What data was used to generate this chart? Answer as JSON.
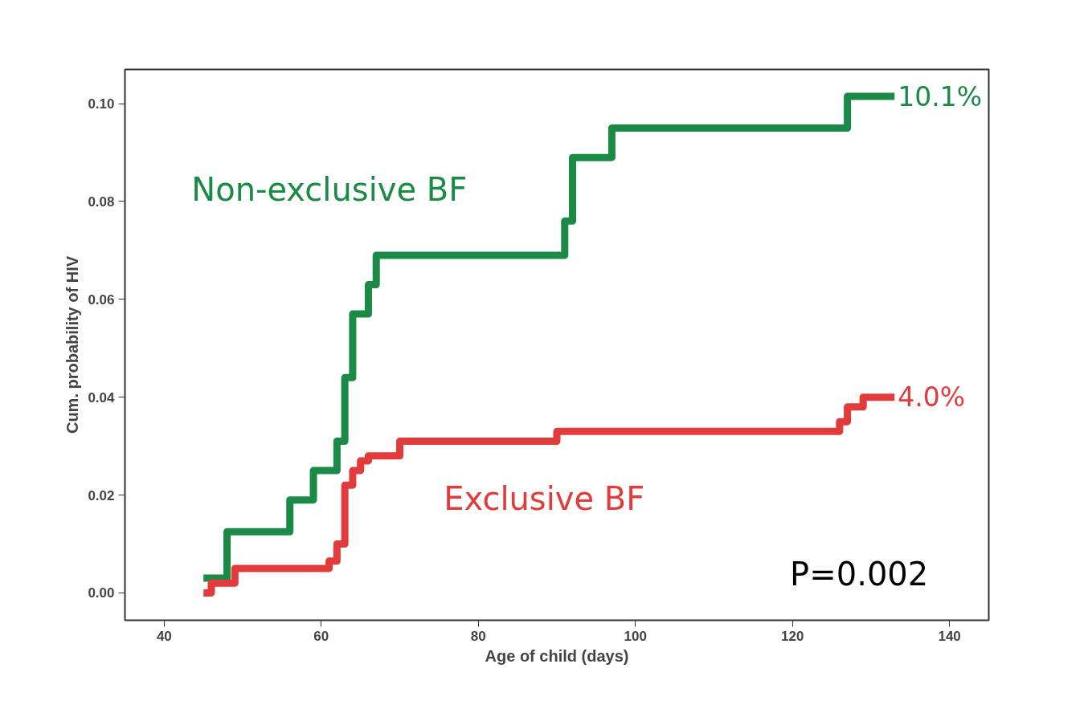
{
  "chart_data": {
    "type": "step",
    "xlabel": "Age of child (days)",
    "ylabel": "Cum. probability of HIV",
    "xlim": [
      35,
      145
    ],
    "ylim": [
      -0.0056,
      0.107
    ],
    "xticks": [
      40,
      60,
      80,
      100,
      120,
      140
    ],
    "yticks": [
      {
        "value": 0,
        "label": "0.00"
      },
      {
        "value": 0.02,
        "label": "0.02"
      },
      {
        "value": 0.04,
        "label": "0.04"
      },
      {
        "value": 0.06,
        "label": "0.06"
      },
      {
        "value": 0.08,
        "label": "0.08"
      },
      {
        "value": 0.1,
        "label": "0.10"
      }
    ],
    "grid": false,
    "marker": "none",
    "line_style": "solid",
    "series": [
      {
        "name": "Non-exclusive BF",
        "color": "#1a8a46",
        "x": [
          45,
          48,
          56,
          59,
          62,
          63,
          64,
          66,
          67,
          91,
          92,
          97,
          127,
          133
        ],
        "values": [
          0.003,
          0.0125,
          0.019,
          0.025,
          0.031,
          0.044,
          0.057,
          0.063,
          0.069,
          0.076,
          0.089,
          0.095,
          0.1015,
          0.1015
        ],
        "value_labels": [
          null,
          null,
          null,
          null,
          null,
          null,
          null,
          null,
          null,
          null,
          null,
          null,
          null,
          "10.1%"
        ]
      },
      {
        "name": "Exclusive BF",
        "color": "#e23b3b",
        "x": [
          45,
          46,
          49,
          61,
          62,
          63,
          64,
          65,
          66,
          70,
          90,
          126,
          127,
          129,
          133
        ],
        "values": [
          0.0,
          0.002,
          0.005,
          0.0065,
          0.01,
          0.022,
          0.025,
          0.027,
          0.028,
          0.031,
          0.033,
          0.035,
          0.038,
          0.04,
          0.04
        ],
        "value_labels": [
          null,
          null,
          null,
          null,
          null,
          null,
          null,
          null,
          null,
          null,
          null,
          null,
          null,
          null,
          "4.0%"
        ]
      }
    ],
    "annotations": [
      "P=0.002"
    ]
  }
}
